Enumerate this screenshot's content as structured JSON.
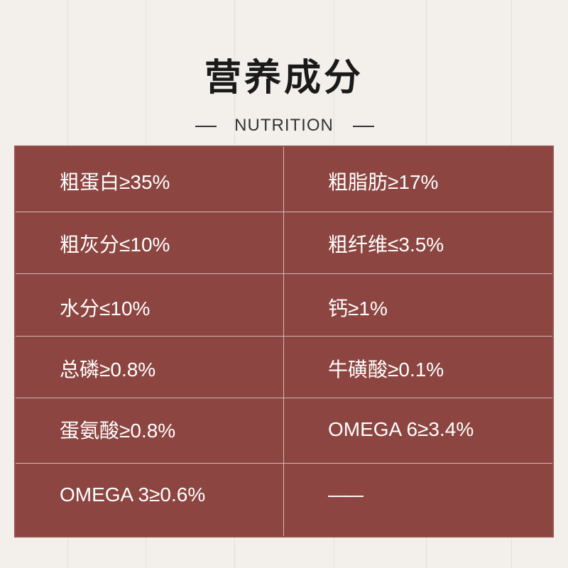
{
  "header": {
    "title": "营养成分",
    "subtitle": "NUTRITION"
  },
  "colors": {
    "table_background": "#8c4540",
    "page_background": "#f3f0ec"
  },
  "nutrition_table": [
    [
      "粗蛋白≥35%",
      "粗脂肪≥17%"
    ],
    [
      "粗灰分≤10%",
      "粗纤维≤3.5%"
    ],
    [
      "水分≤10%",
      "钙≥1%"
    ],
    [
      "总磷≥0.8%",
      "牛磺酸≥0.1%"
    ],
    [
      "蛋氨酸≥0.8%",
      "OMEGA 6≥3.4%"
    ],
    [
      "OMEGA 3≥0.6%",
      "——"
    ]
  ]
}
